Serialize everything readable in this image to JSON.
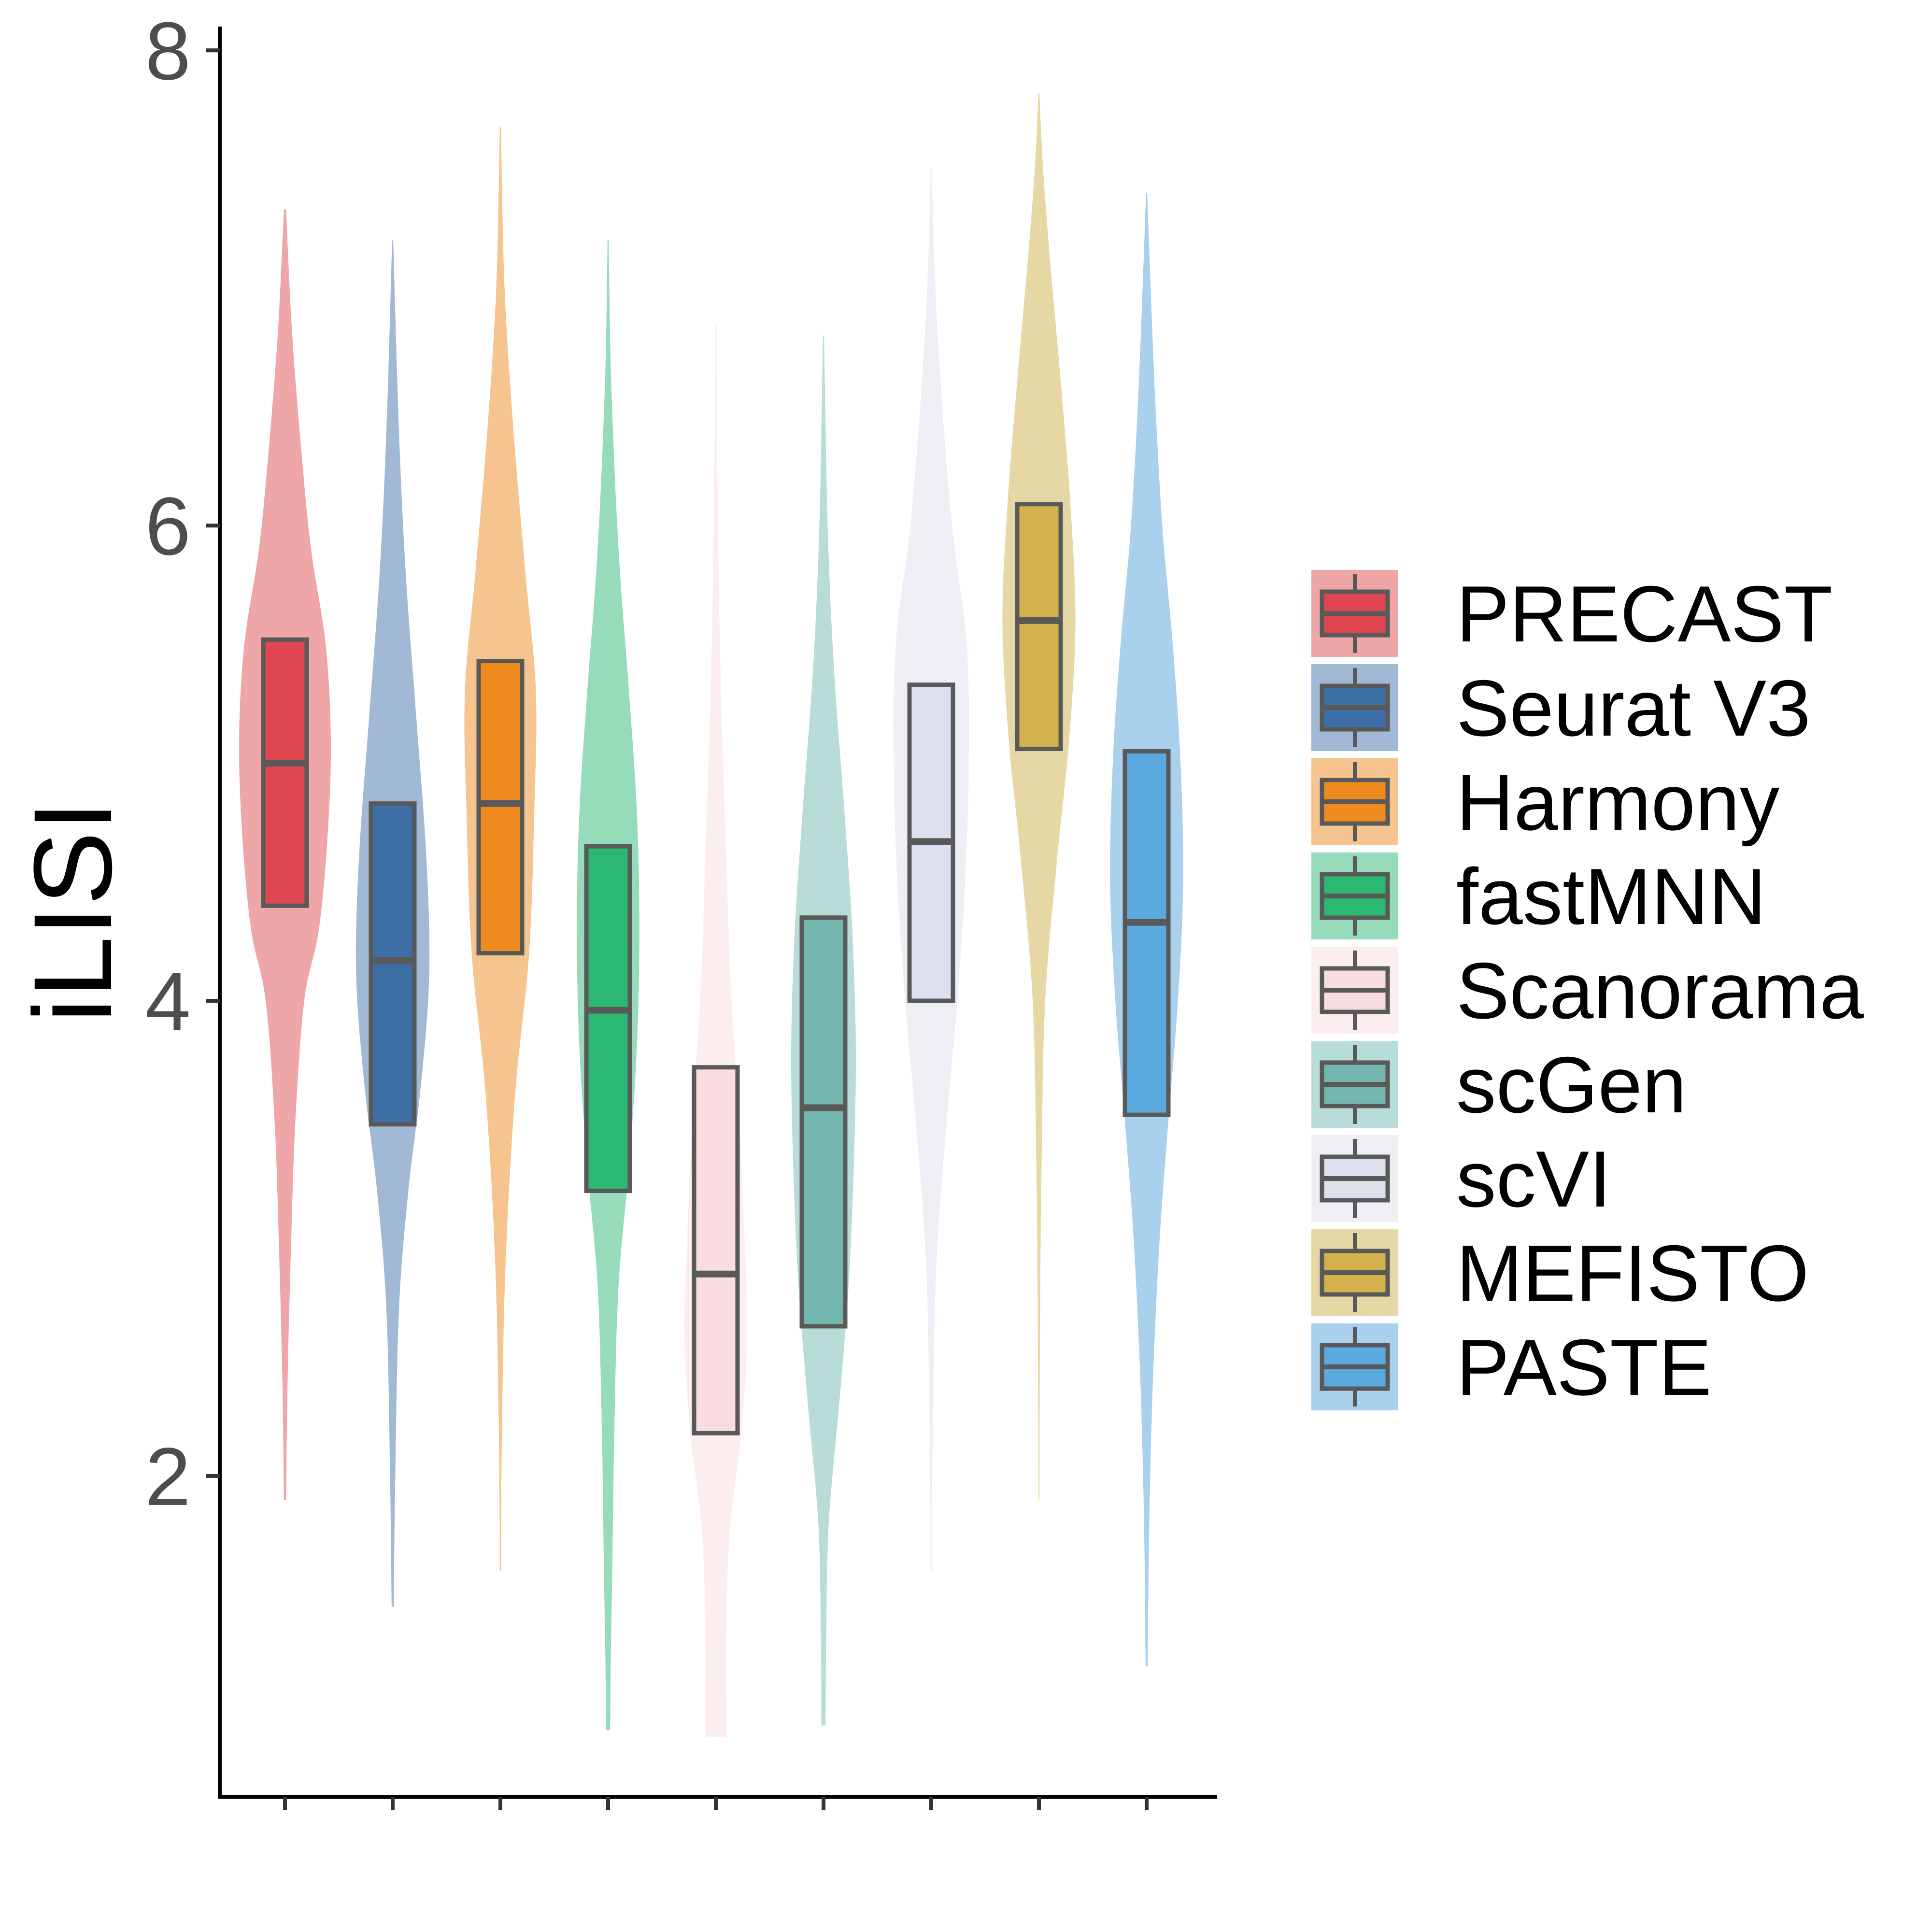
{
  "chart_data": {
    "type": "violin",
    "ylabel": "iLISI",
    "xlabel": "",
    "ylim": [
      0.65,
      8.1
    ],
    "y_ticks": [
      2,
      4,
      6,
      8
    ],
    "x_tick_labels_shown": false,
    "grid": false,
    "legend_position": "right",
    "box_outline_color": "#595959",
    "series": [
      {
        "name": "PRECAST",
        "fill": "#e0464f",
        "violin_fill": "#efa6a8",
        "min": 1.9,
        "q1": 4.4,
        "median": 5.0,
        "q3": 5.52,
        "max": 7.33,
        "density": [
          [
            1.9,
            0.002
          ],
          [
            2.4,
            0.005
          ],
          [
            3.0,
            0.012
          ],
          [
            3.5,
            0.02
          ],
          [
            4.0,
            0.037
          ],
          [
            4.3,
            0.065
          ],
          [
            4.7,
            0.082
          ],
          [
            5.1,
            0.088
          ],
          [
            5.5,
            0.078
          ],
          [
            5.9,
            0.05
          ],
          [
            6.3,
            0.032
          ],
          [
            6.8,
            0.014
          ],
          [
            7.33,
            0.002
          ]
        ]
      },
      {
        "name": "Seurat V3",
        "fill": "#3d6fa6",
        "violin_fill": "#a2b9d5",
        "min": 1.45,
        "q1": 3.48,
        "median": 4.17,
        "q3": 4.83,
        "max": 7.2,
        "density": [
          [
            1.45,
            0.002
          ],
          [
            2.0,
            0.005
          ],
          [
            2.7,
            0.012
          ],
          [
            3.2,
            0.03
          ],
          [
            3.6,
            0.052
          ],
          [
            4.0,
            0.068
          ],
          [
            4.3,
            0.07
          ],
          [
            4.7,
            0.062
          ],
          [
            5.2,
            0.045
          ],
          [
            5.8,
            0.025
          ],
          [
            6.4,
            0.012
          ],
          [
            7.2,
            0.001
          ]
        ]
      },
      {
        "name": "Harmony",
        "fill": "#f08b20",
        "violin_fill": "#f6c48e",
        "min": 1.6,
        "q1": 4.2,
        "median": 4.83,
        "q3": 5.43,
        "max": 7.68,
        "density": [
          [
            1.6,
            0.001
          ],
          [
            2.2,
            0.003
          ],
          [
            2.9,
            0.01
          ],
          [
            3.6,
            0.028
          ],
          [
            4.2,
            0.055
          ],
          [
            4.8,
            0.065
          ],
          [
            5.3,
            0.068
          ],
          [
            5.8,
            0.048
          ],
          [
            6.4,
            0.025
          ],
          [
            7.0,
            0.008
          ],
          [
            7.68,
            0.001
          ]
        ]
      },
      {
        "name": "fastMNN",
        "fill": "#2ab872",
        "violin_fill": "#96dcbb",
        "min": 0.93,
        "q1": 3.2,
        "median": 3.96,
        "q3": 4.65,
        "max": 7.2,
        "density": [
          [
            0.93,
            0.004
          ],
          [
            1.2,
            0.005
          ],
          [
            1.6,
            0.008
          ],
          [
            2.2,
            0.012
          ],
          [
            2.8,
            0.02
          ],
          [
            3.3,
            0.04
          ],
          [
            3.8,
            0.055
          ],
          [
            4.3,
            0.06
          ],
          [
            4.8,
            0.055
          ],
          [
            5.3,
            0.04
          ],
          [
            5.9,
            0.02
          ],
          [
            6.6,
            0.006
          ],
          [
            7.2,
            0.001
          ]
        ]
      },
      {
        "name": "Scanorama",
        "fill": "#f9dde0",
        "violin_fill": "#fcedef",
        "min": 0.9,
        "q1": 2.18,
        "median": 2.85,
        "q3": 3.72,
        "max": 6.85,
        "density": [
          [
            0.9,
            0.02
          ],
          [
            1.4,
            0.02
          ],
          [
            1.8,
            0.028
          ],
          [
            2.2,
            0.05
          ],
          [
            2.6,
            0.06
          ],
          [
            3.0,
            0.055
          ],
          [
            3.5,
            0.045
          ],
          [
            4.0,
            0.03
          ],
          [
            4.6,
            0.02
          ],
          [
            5.3,
            0.01
          ],
          [
            6.0,
            0.004
          ],
          [
            6.85,
            0.001
          ]
        ]
      },
      {
        "name": "scGen",
        "fill": "#72b6ae",
        "violin_fill": "#b8dcd7",
        "min": 0.95,
        "q1": 2.63,
        "median": 3.55,
        "q3": 4.35,
        "max": 6.8,
        "density": [
          [
            0.95,
            0.004
          ],
          [
            1.3,
            0.005
          ],
          [
            1.8,
            0.01
          ],
          [
            2.3,
            0.03
          ],
          [
            2.8,
            0.048
          ],
          [
            3.3,
            0.058
          ],
          [
            3.8,
            0.062
          ],
          [
            4.3,
            0.055
          ],
          [
            4.8,
            0.04
          ],
          [
            5.4,
            0.02
          ],
          [
            6.0,
            0.008
          ],
          [
            6.8,
            0.001
          ]
        ]
      },
      {
        "name": "scVI",
        "fill": "#dde1ed",
        "violin_fill": "#eeeff5",
        "min": 1.6,
        "q1": 4.0,
        "median": 4.67,
        "q3": 5.33,
        "max": 7.5,
        "density": [
          [
            1.6,
            0.001
          ],
          [
            2.2,
            0.003
          ],
          [
            2.9,
            0.01
          ],
          [
            3.5,
            0.03
          ],
          [
            4.0,
            0.05
          ],
          [
            4.5,
            0.065
          ],
          [
            5.0,
            0.072
          ],
          [
            5.5,
            0.068
          ],
          [
            6.0,
            0.04
          ],
          [
            6.6,
            0.018
          ],
          [
            7.1,
            0.006
          ],
          [
            7.5,
            0.001
          ]
        ]
      },
      {
        "name": "MEFISTO",
        "fill": "#d4b14c",
        "violin_fill": "#e6d8a4",
        "min": 1.9,
        "q1": 5.06,
        "median": 5.6,
        "q3": 6.09,
        "max": 7.82,
        "density": [
          [
            1.9,
            0.001
          ],
          [
            2.6,
            0.002
          ],
          [
            3.3,
            0.005
          ],
          [
            4.0,
            0.012
          ],
          [
            4.6,
            0.035
          ],
          [
            5.1,
            0.058
          ],
          [
            5.6,
            0.07
          ],
          [
            6.1,
            0.06
          ],
          [
            6.6,
            0.042
          ],
          [
            7.1,
            0.022
          ],
          [
            7.5,
            0.008
          ],
          [
            7.82,
            0.001
          ]
        ]
      },
      {
        "name": "PASTE",
        "fill": "#5aa9df",
        "violin_fill": "#a9d1ee",
        "min": 1.2,
        "q1": 3.52,
        "median": 4.33,
        "q3": 5.05,
        "max": 7.4,
        "density": [
          [
            1.2,
            0.002
          ],
          [
            1.8,
            0.005
          ],
          [
            2.4,
            0.012
          ],
          [
            3.0,
            0.025
          ],
          [
            3.5,
            0.042
          ],
          [
            4.0,
            0.06
          ],
          [
            4.5,
            0.07
          ],
          [
            5.0,
            0.065
          ],
          [
            5.5,
            0.05
          ],
          [
            6.0,
            0.03
          ],
          [
            6.6,
            0.015
          ],
          [
            7.4,
            0.001
          ]
        ]
      }
    ]
  }
}
